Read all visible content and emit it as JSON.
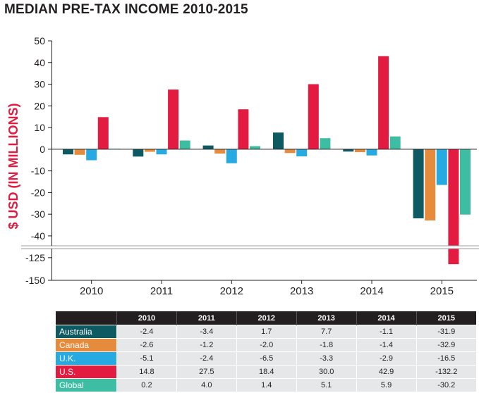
{
  "title": "MEDIAN PRE-TAX INCOME 2010-2015",
  "chart_data": {
    "type": "bar",
    "title": "MEDIAN PRE-TAX INCOME 2010-2015",
    "xlabel": "",
    "ylabel": "$ USD (IN MILLIONS)",
    "categories": [
      "2010",
      "2011",
      "2012",
      "2013",
      "2014",
      "2015"
    ],
    "series": [
      {
        "name": "Australia",
        "color": "#0d5a63",
        "values": [
          -2.4,
          -3.4,
          1.7,
          7.7,
          -1.1,
          -31.9
        ]
      },
      {
        "name": "Canada",
        "color": "#e68a3c",
        "values": [
          -2.6,
          -1.2,
          -2.0,
          -1.8,
          -1.4,
          -32.9
        ]
      },
      {
        "name": "U.K.",
        "color": "#27aae1",
        "values": [
          -5.1,
          -2.4,
          -6.5,
          -3.3,
          -2.9,
          -16.5
        ]
      },
      {
        "name": "U.S.",
        "color": "#e31b40",
        "values": [
          14.8,
          27.5,
          18.4,
          30.0,
          42.9,
          -132.2
        ]
      },
      {
        "name": "Global",
        "color": "#3dbea3",
        "values": [
          0.2,
          4.0,
          1.4,
          5.1,
          5.9,
          -30.2
        ]
      }
    ],
    "yticks_upper": [
      "50",
      "40",
      "30",
      "20",
      "10",
      "0",
      "-10",
      "-20",
      "-30",
      "-40"
    ],
    "yticks_lower": [
      "-125",
      "-150"
    ],
    "ylim_upper": [
      -43,
      50
    ],
    "ylim_lower": [
      -150,
      -115
    ],
    "axis_break": true
  },
  "table": {
    "headers": [
      "2010",
      "2011",
      "2012",
      "2013",
      "2014",
      "2015"
    ],
    "rows": [
      {
        "label": "Australia",
        "color": "#0d5a63",
        "values": [
          "-2.4",
          "-3.4",
          "1.7",
          "7.7",
          "-1.1",
          "-31.9"
        ]
      },
      {
        "label": "Canada",
        "color": "#e68a3c",
        "values": [
          "-2.6",
          "-1.2",
          "-2.0",
          "-1.8",
          "-1.4",
          "-32.9"
        ]
      },
      {
        "label": "U.K.",
        "color": "#27aae1",
        "values": [
          "-5.1",
          "-2.4",
          "-6.5",
          "-3.3",
          "-2.9",
          "-16.5"
        ]
      },
      {
        "label": "U.S.",
        "color": "#e31b40",
        "values": [
          "14.8",
          "27.5",
          "18.4",
          "30.0",
          "42.9",
          "-132.2"
        ]
      },
      {
        "label": "Global",
        "color": "#3dbea3",
        "values": [
          "0.2",
          "4.0",
          "1.4",
          "5.1",
          "5.9",
          "-30.2"
        ]
      }
    ]
  }
}
